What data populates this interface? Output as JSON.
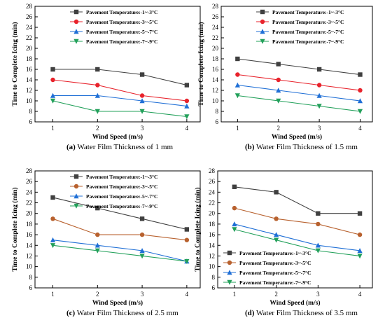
{
  "chart_data": [
    {
      "type": "line",
      "id": "a",
      "caption_letter": "(a)",
      "caption_text": " Water Film Thickness of 1 mm",
      "xlabel": "Wind Speed (m/s)",
      "ylabel": "Time to Complete Icing (min)",
      "x": [
        1,
        2,
        3,
        4
      ],
      "xlim": [
        0.6,
        4.3
      ],
      "ylim": [
        6,
        28
      ],
      "yticks": [
        6,
        8,
        10,
        12,
        14,
        16,
        18,
        20,
        22,
        24,
        26,
        28
      ],
      "legend_position": "top-right",
      "series": [
        {
          "name": "Pavement Temperature:-1~-3°C",
          "color": "#404040",
          "marker": "square",
          "values": [
            16,
            16,
            15,
            13
          ]
        },
        {
          "name": "Pavement Temperature:-3~-5°C",
          "color": "#e8232c",
          "marker": "circle",
          "values": [
            14,
            13,
            11,
            10
          ]
        },
        {
          "name": "Pavement Temperature:-5~-7°C",
          "color": "#1f6fd6",
          "marker": "triangle-up",
          "values": [
            11,
            11,
            10,
            9
          ]
        },
        {
          "name": "Pavement Temperature:-7~-9°C",
          "color": "#22a05a",
          "marker": "triangle-down",
          "values": [
            10,
            8,
            8,
            7
          ]
        }
      ]
    },
    {
      "type": "line",
      "id": "b",
      "caption_letter": "(b)",
      "caption_text": " Water Film Thickness of 1.5 mm",
      "xlabel": "Wind Speed (m/s)",
      "ylabel": "Time to Complete Icing (min)",
      "x": [
        1,
        2,
        3,
        4
      ],
      "xlim": [
        0.6,
        4.3
      ],
      "ylim": [
        6,
        28
      ],
      "yticks": [
        6,
        8,
        10,
        12,
        14,
        16,
        18,
        20,
        22,
        24,
        26,
        28
      ],
      "legend_position": "top-right",
      "series": [
        {
          "name": "Pavement Temperature:-1~-3°C",
          "color": "#404040",
          "marker": "square",
          "values": [
            18,
            17,
            16,
            15
          ]
        },
        {
          "name": "Pavement Temperature:-3~-5°C",
          "color": "#e8232c",
          "marker": "circle",
          "values": [
            15,
            14,
            13,
            12
          ]
        },
        {
          "name": "Pavement Temperature:-5~-7°C",
          "color": "#1f6fd6",
          "marker": "triangle-up",
          "values": [
            13,
            12,
            11,
            10
          ]
        },
        {
          "name": "Pavement Temperature:-7~-9°C",
          "color": "#22a05a",
          "marker": "triangle-down",
          "values": [
            11,
            10,
            9,
            8
          ]
        }
      ]
    },
    {
      "type": "line",
      "id": "c",
      "caption_letter": "(c)",
      "caption_text": " Water Film Thickness of 2.5 mm",
      "xlabel": "Wind Speed (m/s)",
      "ylabel": "Time to Complete Icing (min)",
      "x": [
        1,
        2,
        3,
        4
      ],
      "xlim": [
        0.6,
        4.3
      ],
      "ylim": [
        6,
        28
      ],
      "yticks": [
        6,
        8,
        10,
        12,
        14,
        16,
        18,
        20,
        22,
        24,
        26,
        28
      ],
      "legend_position": "top-right",
      "series": [
        {
          "name": "Pavement Temperature:-1~-3°C",
          "color": "#404040",
          "marker": "square",
          "values": [
            23,
            21,
            19,
            17
          ]
        },
        {
          "name": "Pavement Temperature:-3~-5°C",
          "color": "#b8612e",
          "marker": "circle",
          "values": [
            19,
            16,
            16,
            15
          ]
        },
        {
          "name": "Pavement Temperature:-5~-7°C",
          "color": "#1f6fd6",
          "marker": "triangle-up",
          "values": [
            15,
            14,
            13,
            11
          ]
        },
        {
          "name": "Pavement Temperature:-7~-9°C",
          "color": "#22a05a",
          "marker": "triangle-down",
          "values": [
            14,
            13,
            12,
            11
          ]
        }
      ]
    },
    {
      "type": "line",
      "id": "d",
      "caption_letter": "(d)",
      "caption_text": " Water Film Thickness of 3.5 mm",
      "xlabel": "Wind Speed (m/s)",
      "ylabel": "Time to Complete Icing (min)",
      "x": [
        1,
        2,
        3,
        4
      ],
      "xlim": [
        0.6,
        4.3
      ],
      "ylim": [
        6,
        28
      ],
      "yticks": [
        6,
        8,
        10,
        12,
        14,
        16,
        18,
        20,
        22,
        24,
        26,
        28
      ],
      "legend_position": "bottom-left",
      "series": [
        {
          "name": "Pavement Temperature:-1~-3°C",
          "color": "#404040",
          "marker": "square",
          "values": [
            25,
            24,
            20,
            20
          ]
        },
        {
          "name": "Pavement Temperature:-3~-5°C",
          "color": "#b8612e",
          "marker": "circle",
          "values": [
            21,
            19,
            18,
            16
          ]
        },
        {
          "name": "Pavement Temperature:-5~-7°C",
          "color": "#1f6fd6",
          "marker": "triangle-up",
          "values": [
            18,
            16,
            14,
            13
          ]
        },
        {
          "name": "Pavement Temperature:-7~-9°C",
          "color": "#22a05a",
          "marker": "triangle-down",
          "values": [
            17,
            15,
            13,
            12
          ]
        }
      ]
    }
  ]
}
